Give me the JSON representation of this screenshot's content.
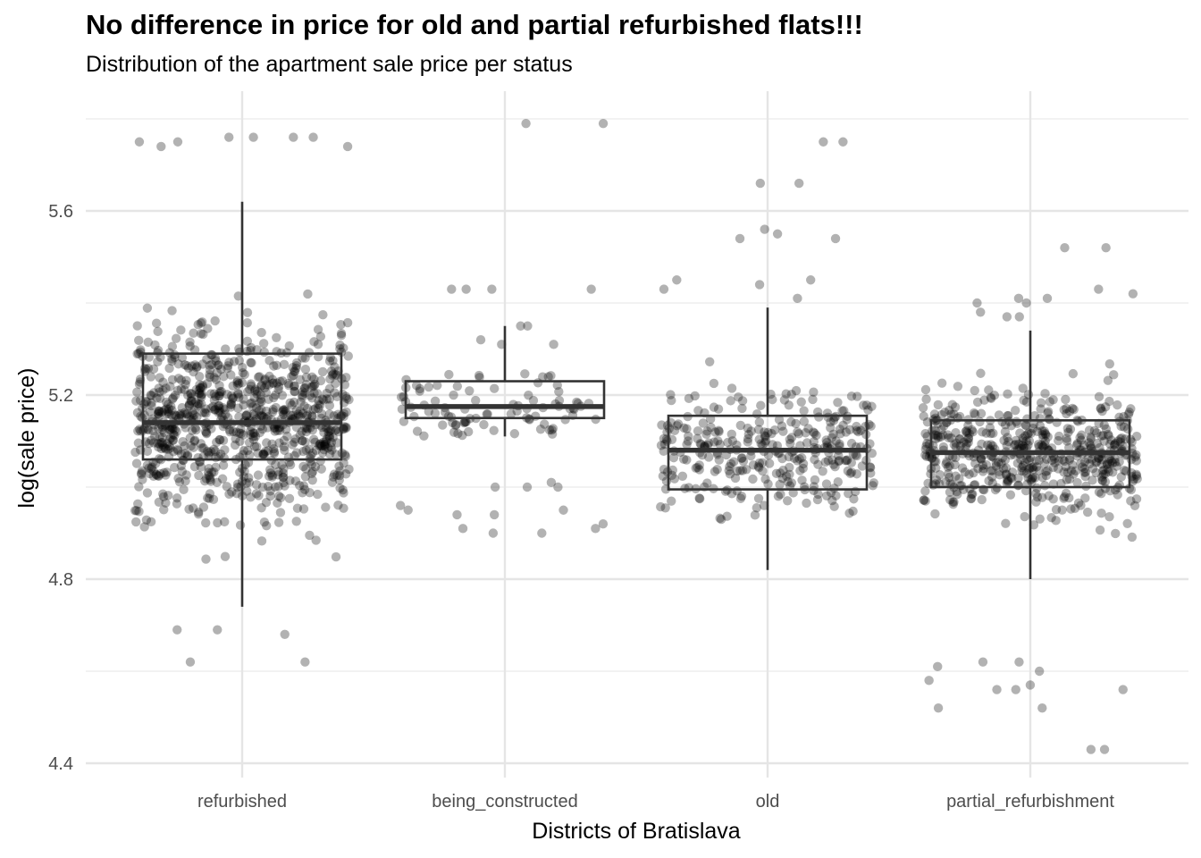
{
  "chart_data": {
    "type": "box",
    "title": "No difference in price for old and partial refurbished flats!!!",
    "subtitle": "Distribution of the apartment sale price per status",
    "xlabel": "Districts of Bratislava",
    "ylabel": "log(sale price)",
    "ylim": [
      4.39,
      5.81
    ],
    "yticks": [
      4.4,
      4.8,
      5.2,
      5.6
    ],
    "ytick_labels": [
      "4.4",
      "4.8",
      "5.2",
      "5.6"
    ],
    "grid": true,
    "point_color": "#000000",
    "point_opacity": 0.3,
    "box_color": "#333333",
    "categories": [
      "refurbished",
      "being_constructed",
      "old",
      "partial_refurbishment"
    ],
    "boxes": [
      {
        "name": "refurbished",
        "min": 4.74,
        "q1": 5.06,
        "median": 5.14,
        "q3": 5.29,
        "max": 5.62,
        "n_points": 900
      },
      {
        "name": "being_constructed",
        "min": 5.11,
        "q1": 5.15,
        "median": 5.175,
        "q3": 5.23,
        "max": 5.35,
        "n_points": 90
      },
      {
        "name": "old",
        "min": 4.82,
        "q1": 4.995,
        "median": 5.08,
        "q3": 5.155,
        "max": 5.39,
        "n_points": 330
      },
      {
        "name": "partial_refurbishment",
        "min": 4.8,
        "q1": 5.0,
        "median": 5.075,
        "q3": 5.145,
        "max": 5.34,
        "n_points": 560
      }
    ],
    "outliers": [
      {
        "category": "refurbished",
        "values": [
          4.62,
          4.62,
          4.68,
          4.69,
          4.69,
          5.76,
          5.76,
          5.76,
          5.76,
          5.75,
          5.74,
          5.75,
          5.74
        ]
      },
      {
        "category": "being_constructed",
        "values": [
          5.79,
          5.79,
          5.43,
          5.43,
          5.43,
          5.43,
          5.35,
          5.35,
          5.32,
          5.31,
          5.31,
          4.9,
          4.9,
          4.91,
          4.91,
          4.92,
          4.94,
          4.94,
          4.95,
          4.95,
          4.96,
          5.0,
          5.0,
          5.0,
          5.01
        ]
      },
      {
        "category": "old",
        "values": [
          5.75,
          5.75,
          5.66,
          5.66,
          5.56,
          5.55,
          5.54,
          5.54,
          5.45,
          5.45,
          5.44,
          5.43,
          5.41
        ]
      },
      {
        "category": "partial_refurbishment",
        "values": [
          5.52,
          5.52,
          5.43,
          5.42,
          5.41,
          5.41,
          5.4,
          5.4,
          5.38,
          5.37,
          5.37,
          4.62,
          4.62,
          4.61,
          4.6,
          4.58,
          4.57,
          4.56,
          4.56,
          4.56,
          4.52,
          4.52,
          4.43,
          4.43
        ]
      }
    ]
  }
}
